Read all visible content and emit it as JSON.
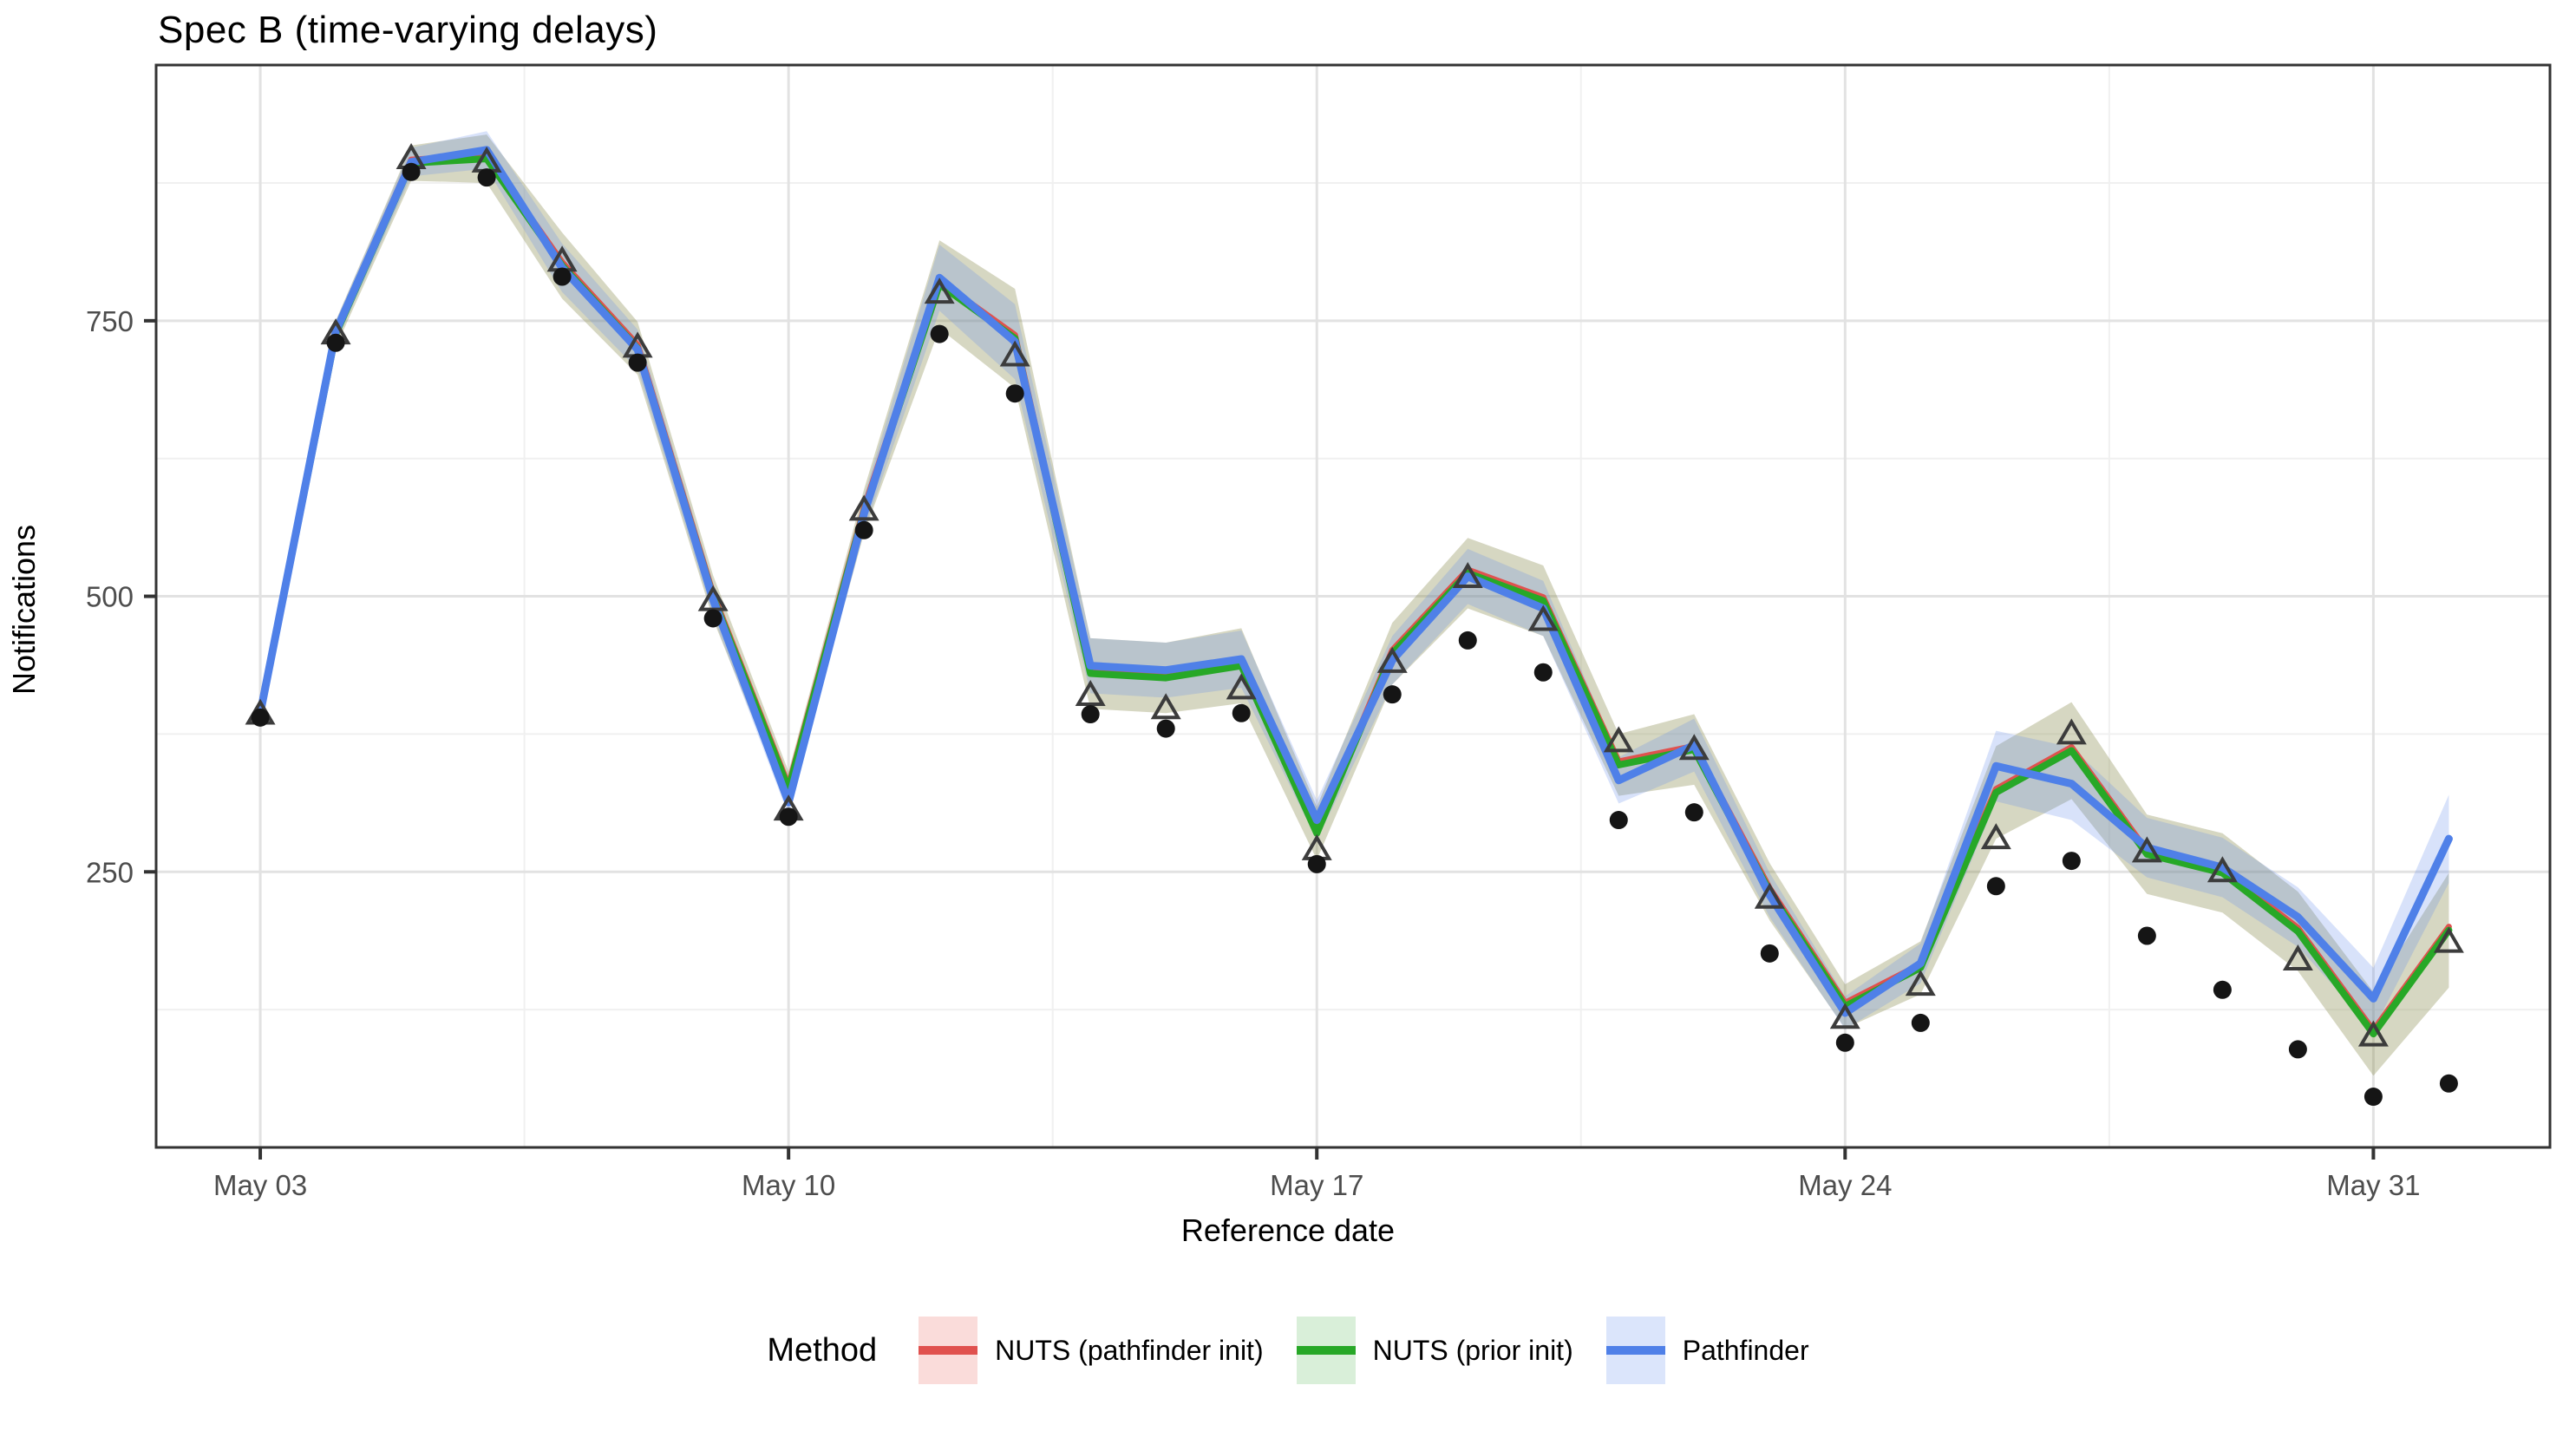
{
  "title": "Spec B (time-varying delays)",
  "axes": {
    "x_label": "Reference date",
    "y_label": "Notifications"
  },
  "legend": {
    "title": "Method",
    "items": [
      {
        "label": "NUTS (pathfinder init)",
        "line_color": "#E0514E",
        "swatch_bg": "#FADCDA"
      },
      {
        "label": "NUTS (prior init)",
        "line_color": "#27A827",
        "swatch_bg": "#D9EFD9"
      },
      {
        "label": "Pathfinder",
        "line_color": "#4F80E8",
        "swatch_bg": "#DBE5FB"
      }
    ]
  },
  "chart_data": {
    "type": "line",
    "title": "Spec B (time-varying delays)",
    "xlabel": "Reference date",
    "ylabel": "Notifications",
    "grid": true,
    "legend_position": "bottom",
    "x_tick_labels": [
      "May 03",
      "May 10",
      "May 17",
      "May 24",
      "May 31"
    ],
    "x_tick_days": [
      3,
      10,
      17,
      24,
      31
    ],
    "x_minor_days": [
      6.5,
      13.5,
      20.5,
      27.5
    ],
    "y_ticks": [
      250,
      500,
      750
    ],
    "y_minor_ticks": [
      125,
      375,
      625,
      875
    ],
    "x_domain_days": [
      1.62,
      33.34
    ],
    "ylim": [
      0,
      982
    ],
    "dates": [
      "May 03",
      "May 04",
      "May 05",
      "May 06",
      "May 07",
      "May 08",
      "May 09",
      "May 10",
      "May 11",
      "May 12",
      "May 13",
      "May 14",
      "May 15",
      "May 16",
      "May 17",
      "May 18",
      "May 19",
      "May 20",
      "May 21",
      "May 22",
      "May 23",
      "May 24",
      "May 25",
      "May 26",
      "May 27",
      "May 28",
      "May 29",
      "May 30",
      "May 31",
      "Jun 01"
    ],
    "days": [
      3,
      4,
      5,
      6,
      7,
      8,
      9,
      10,
      11,
      12,
      13,
      14,
      15,
      16,
      17,
      18,
      19,
      20,
      21,
      22,
      23,
      24,
      25,
      26,
      27,
      28,
      29,
      30,
      31,
      32
    ],
    "series": [
      {
        "name": "Observed notifications (dots)",
        "marker": "circle",
        "color": "#151515",
        "values": [
          390,
          730,
          885,
          880,
          790,
          712,
          480,
          300,
          560,
          738,
          684,
          393,
          380,
          394,
          257,
          411,
          460,
          431,
          297,
          304,
          176,
          95,
          113,
          237,
          260,
          192,
          143,
          89,
          46,
          58
        ]
      },
      {
        "name": "Reference estimate (triangles)",
        "marker": "triangle",
        "color": "#3C3C3C",
        "values": [
          393,
          738,
          897,
          894,
          804,
          726,
          496,
          306,
          578,
          775,
          718,
          410,
          398,
          416,
          270,
          440,
          517,
          478,
          368,
          361,
          226,
          117,
          147,
          280,
          375,
          268,
          250,
          170,
          101,
          186
        ]
      },
      {
        "name": "NUTS (pathfinder init)",
        "marker": "none",
        "color": "#E0514E",
        "ribbon_color": "rgba(235,110,105,0.20)",
        "values": [
          394,
          738,
          893,
          897,
          800,
          725,
          499,
          325,
          577,
          783,
          734,
          430,
          426,
          437,
          285,
          448,
          521,
          496,
          347,
          361,
          232,
          128,
          163,
          322,
          360,
          266,
          249,
          196,
          103,
          197
        ],
        "ribbon_halfwidth": [
          10,
          12,
          16,
          22,
          30,
          24,
          20,
          16,
          20,
          40,
          45,
          32,
          32,
          34,
          24,
          28,
          32,
          32,
          28,
          32,
          26,
          20,
          24,
          42,
          44,
          36,
          36,
          36,
          38,
          52
        ]
      },
      {
        "name": "NUTS (prior init)",
        "marker": "none",
        "color": "#27A827",
        "ribbon_color": "rgba(70,175,70,0.20)",
        "values": [
          394,
          738,
          893,
          897,
          800,
          725,
          499,
          325,
          577,
          783,
          734,
          430,
          426,
          437,
          285,
          448,
          521,
          496,
          347,
          361,
          232,
          128,
          163,
          322,
          360,
          266,
          249,
          196,
          103,
          197
        ],
        "ribbon_halfwidth": [
          10,
          12,
          16,
          22,
          30,
          24,
          20,
          16,
          20,
          40,
          45,
          32,
          32,
          34,
          24,
          28,
          32,
          32,
          28,
          32,
          26,
          20,
          24,
          42,
          44,
          36,
          36,
          36,
          38,
          52
        ]
      },
      {
        "name": "Pathfinder",
        "marker": "none",
        "color": "#4F80E8",
        "ribbon_color": "rgba(100,140,235,0.25)",
        "values": [
          394,
          740,
          894,
          905,
          798,
          724,
          497,
          313,
          575,
          789,
          731,
          437,
          433,
          443,
          297,
          442,
          518,
          489,
          333,
          365,
          229,
          122,
          167,
          346,
          330,
          272,
          254,
          209,
          135,
          280
        ],
        "ribbon_halfwidth": [
          8,
          10,
          13,
          17,
          22,
          18,
          15,
          12,
          16,
          30,
          34,
          25,
          25,
          26,
          18,
          22,
          25,
          25,
          21,
          24,
          20,
          15,
          18,
          32,
          33,
          27,
          27,
          27,
          28,
          40
        ]
      }
    ]
  },
  "style": {
    "grid_major_color": "#E2E2E2",
    "grid_minor_color": "#F0F0F0",
    "panel_border_color": "#333333",
    "tick_label_color": "#4D4D4D",
    "panel_bg": "#FFFFFF"
  }
}
